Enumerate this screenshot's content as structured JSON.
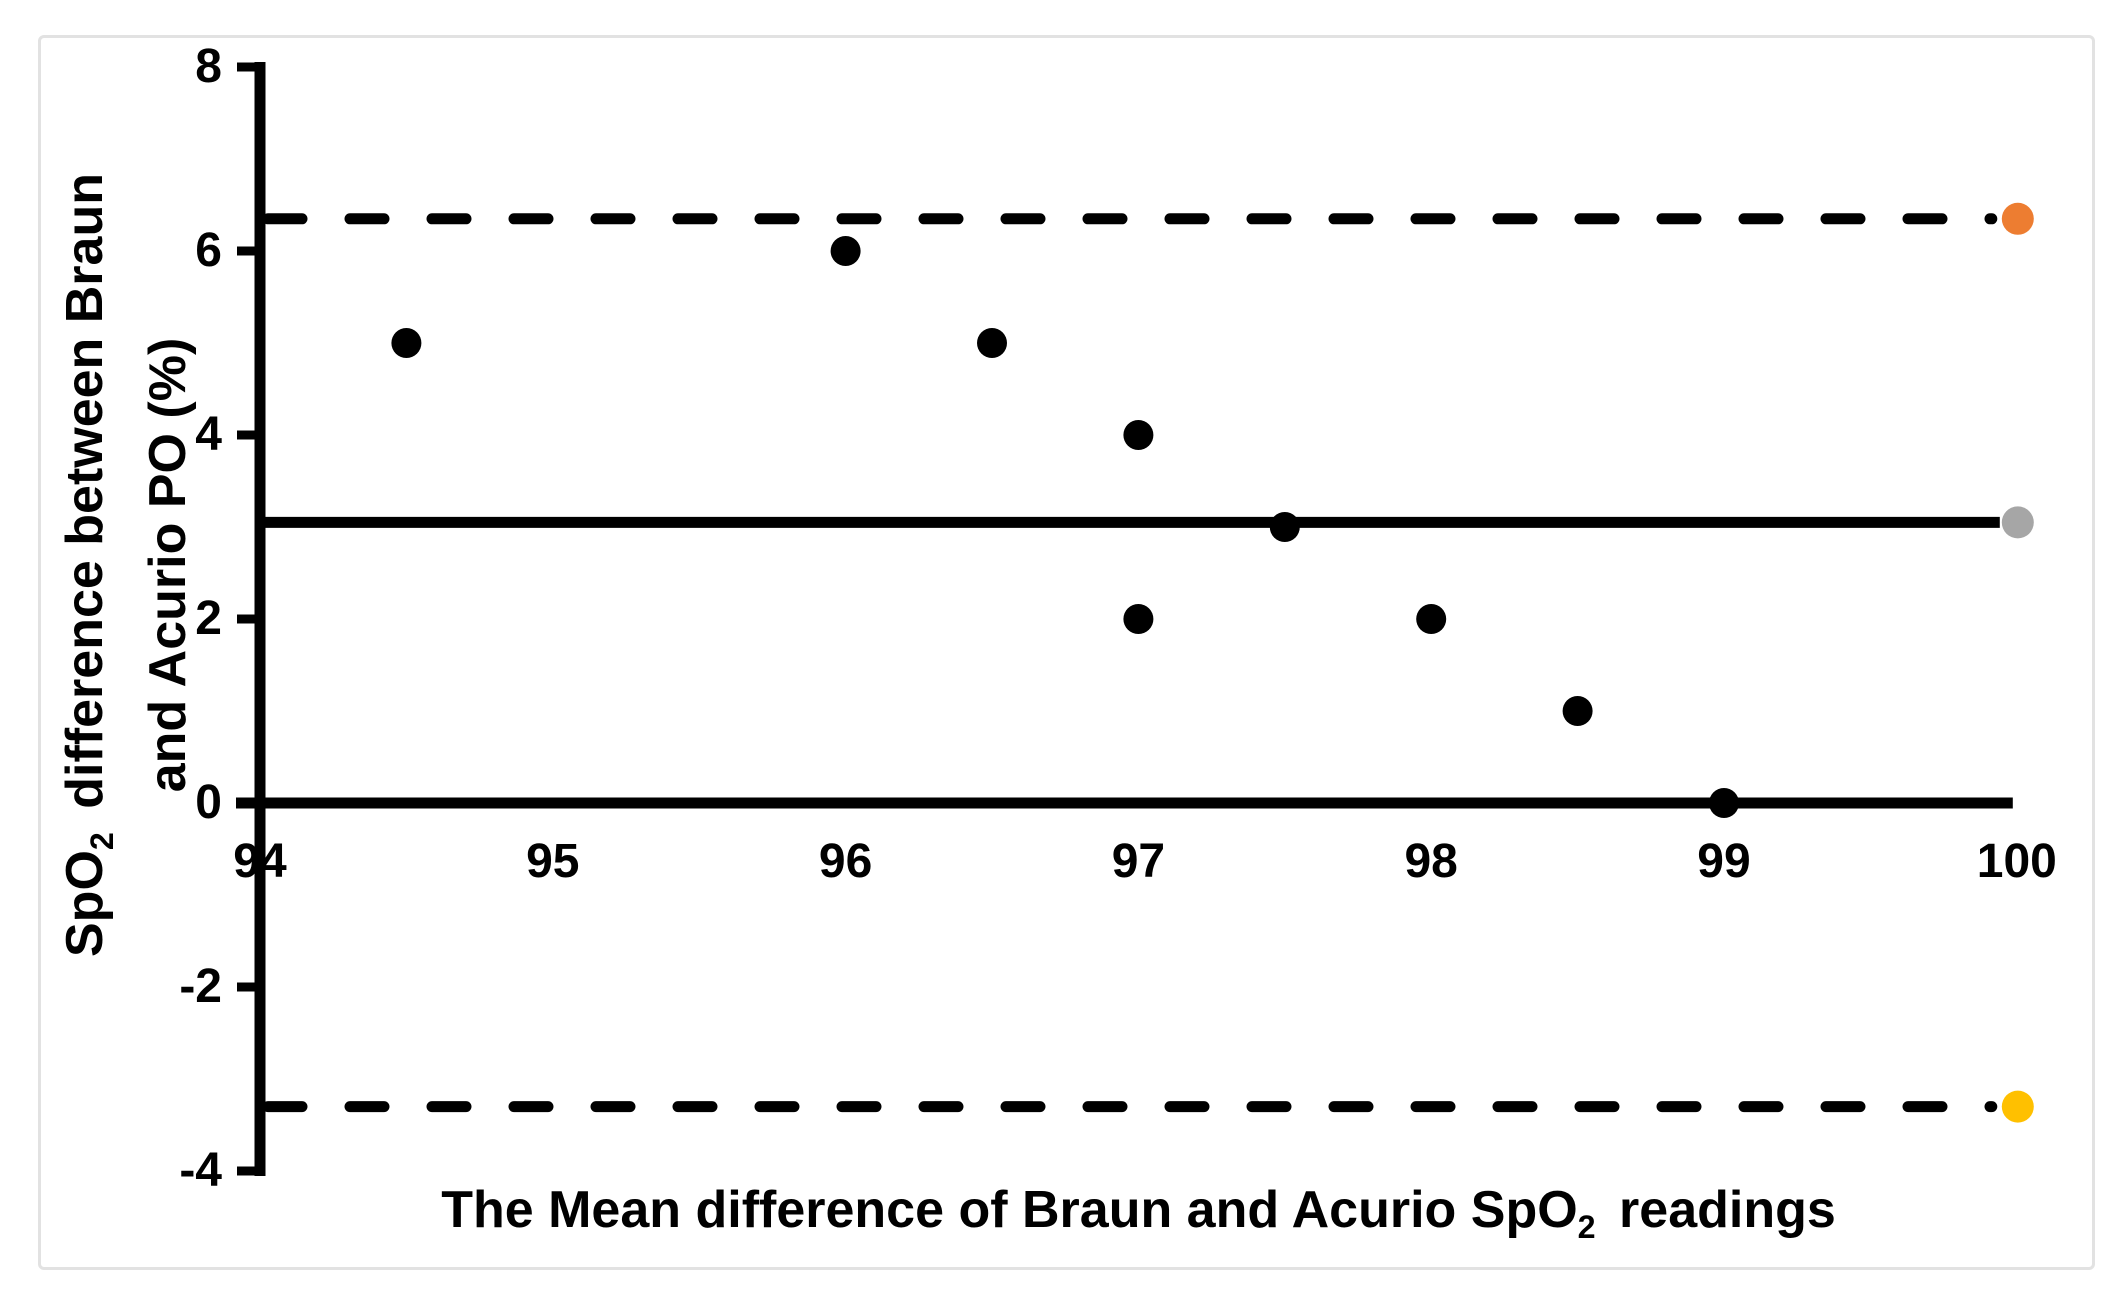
{
  "chart_data": {
    "type": "scatter",
    "title": "",
    "xlabel_parts": {
      "pre": "The Mean difference of Braun and Acurio SpO",
      "sub": "2",
      "post": " readings"
    },
    "ylabel_line1_parts": {
      "pre": "SpO",
      "sub": "2",
      "post": " difference between Braun"
    },
    "ylabel_line2": "and Acurio PO (%)",
    "xlim": [
      94,
      100
    ],
    "ylim": [
      -4,
      8
    ],
    "x_ticks": [
      94,
      95,
      96,
      97,
      98,
      99,
      100
    ],
    "y_ticks": [
      8,
      6,
      4,
      2,
      0,
      -2,
      -4
    ],
    "grid": "off",
    "legend": "none",
    "points": [
      {
        "x": 94.5,
        "y": 5
      },
      {
        "x": 96,
        "y": 6
      },
      {
        "x": 96.5,
        "y": 5
      },
      {
        "x": 97,
        "y": 4
      },
      {
        "x": 97,
        "y": 2
      },
      {
        "x": 97.5,
        "y": 3
      },
      {
        "x": 98,
        "y": 2
      },
      {
        "x": 98.5,
        "y": 1
      },
      {
        "x": 99,
        "y": 0
      }
    ],
    "reference_lines": [
      {
        "name": "upper-loa",
        "value": 6.35,
        "style": "dashed",
        "marker_color": "#ED7D31"
      },
      {
        "name": "mean-bias",
        "value": 3.05,
        "style": "solid",
        "marker_color": "#A6A6A6"
      },
      {
        "name": "zero-axis",
        "value": 0,
        "style": "solid",
        "marker_color": ""
      },
      {
        "name": "lower-loa",
        "value": -3.3,
        "style": "dashed",
        "marker_color": "#FFC000"
      }
    ],
    "colors": {
      "point": "#000000",
      "axis": "#000000",
      "frame_border": "#E2E2E2",
      "background": "#FFFFFF"
    }
  }
}
